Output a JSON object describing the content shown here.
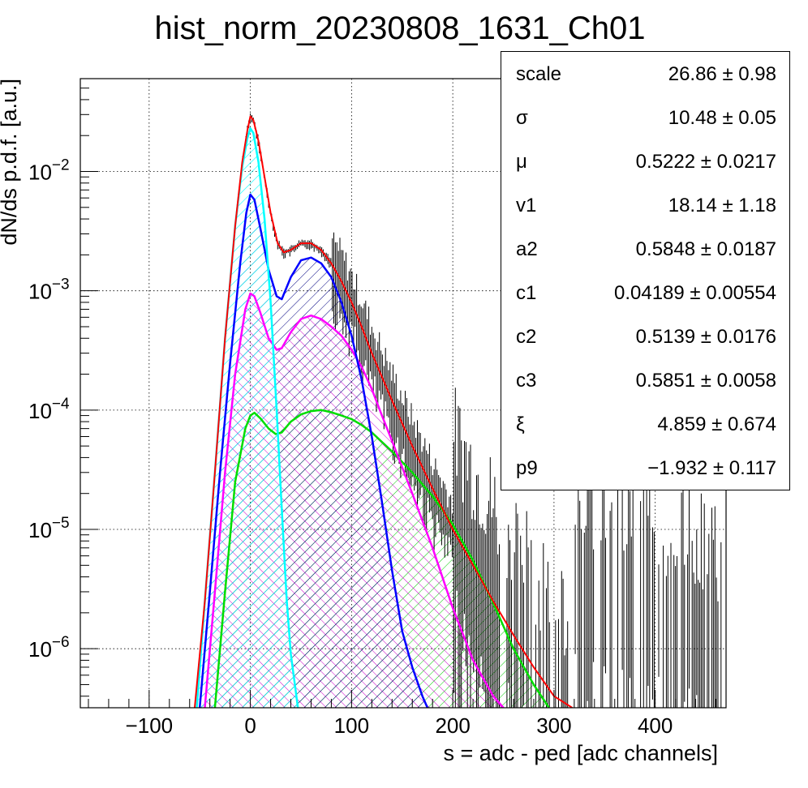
{
  "chart_data": {
    "type": "line",
    "title": "hist_norm_20230808_1631_Ch01",
    "xlabel": "s = adc - ped [adc channels]",
    "ylabel": "dN/ds p.d.f. [a.u.]",
    "xlim": [
      -168,
      470
    ],
    "ylim": [
      3.2e-07,
      0.06
    ],
    "yscale": "log",
    "grid": true,
    "x_ticks": [
      "−100",
      "0",
      "100",
      "200",
      "300",
      "400"
    ],
    "x_tick_values": [
      -100,
      0,
      100,
      200,
      300,
      400
    ],
    "y_ticks": [
      {
        "value": 1e-06,
        "base": "10",
        "exp": "−6"
      },
      {
        "value": 1e-05,
        "base": "10",
        "exp": "−5"
      },
      {
        "value": 0.0001,
        "base": "10",
        "exp": "−4"
      },
      {
        "value": 0.001,
        "base": "10",
        "exp": "−3"
      },
      {
        "value": 0.01,
        "base": "10",
        "exp": "−2"
      }
    ],
    "series": [
      {
        "color": "#ff0000",
        "fill": "none",
        "x": [
          -55,
          -45,
          -35,
          -25,
          -15,
          -8,
          -3,
          0,
          3,
          8,
          14,
          20,
          27,
          33,
          40,
          50,
          60,
          70,
          80,
          90,
          100,
          110,
          120,
          140,
          160,
          180,
          200,
          220,
          240,
          260,
          280,
          300,
          318
        ],
        "y": [
          3.2e-07,
          2.5e-06,
          3e-05,
          0.0004,
          0.0035,
          0.012,
          0.022,
          0.029,
          0.027,
          0.018,
          0.009,
          0.0045,
          0.0025,
          0.0021,
          0.0022,
          0.0025,
          0.0025,
          0.0022,
          0.0017,
          0.0012,
          0.0008,
          0.0005,
          0.0003,
          0.00012,
          5e-05,
          2.2e-05,
          1e-05,
          5e-06,
          2.5e-06,
          1.3e-06,
          7e-07,
          4e-07,
          3.2e-07
        ]
      },
      {
        "color": "#00ffff",
        "fill": "#00ffff",
        "x": [
          -53,
          -45,
          -35,
          -25,
          -15,
          -8,
          -3,
          0,
          3,
          8,
          14,
          20,
          26,
          31,
          36,
          40,
          44,
          47
        ],
        "y": [
          3.2e-07,
          2.5e-06,
          3e-05,
          0.0004,
          0.0035,
          0.011,
          0.019,
          0.023,
          0.021,
          0.012,
          0.004,
          0.0008,
          0.0001,
          1.5e-05,
          2.5e-06,
          9e-07,
          5e-07,
          3.2e-07
        ]
      },
      {
        "color": "#0000ff",
        "fill": "#000080",
        "x": [
          -50,
          -40,
          -30,
          -20,
          -10,
          -4,
          0,
          4,
          10,
          18,
          26,
          31,
          40,
          50,
          60,
          70,
          80,
          90,
          100,
          110,
          120,
          130,
          140,
          150,
          160,
          170,
          175
        ],
        "y": [
          3.2e-07,
          3e-06,
          3e-05,
          0.00025,
          0.0017,
          0.0045,
          0.0064,
          0.0058,
          0.0033,
          0.0015,
          0.0009,
          0.00085,
          0.0013,
          0.0018,
          0.0019,
          0.0017,
          0.0013,
          0.0008,
          0.00042,
          0.00018,
          6e-05,
          1.7e-05,
          4.5e-06,
          1.4e-06,
          7e-07,
          4e-07,
          3.2e-07
        ]
      },
      {
        "color": "#ff00ff",
        "fill": "#cc00cc",
        "x": [
          -45,
          -35,
          -25,
          -15,
          -5,
          0,
          4,
          10,
          18,
          26,
          31,
          40,
          50,
          60,
          70,
          80,
          90,
          100,
          110,
          120,
          130,
          140,
          160,
          180,
          200,
          220,
          240,
          250
        ],
        "y": [
          3.2e-07,
          3e-06,
          3e-05,
          0.0002,
          0.0007,
          0.00095,
          0.0009,
          0.00065,
          0.0004,
          0.00032,
          0.00033,
          0.00045,
          0.00058,
          0.00062,
          0.00058,
          0.0005,
          0.00042,
          0.00032,
          0.00023,
          0.00015,
          9e-05,
          5.5e-05,
          2e-05,
          7e-06,
          2.2e-06,
          8e-07,
          4e-07,
          3.2e-07
        ]
      },
      {
        "color": "#00dd00",
        "fill": "#00cc00",
        "x": [
          -35,
          -25,
          -15,
          -5,
          0,
          4,
          10,
          18,
          25,
          31,
          40,
          50,
          60,
          70,
          80,
          90,
          100,
          110,
          120,
          140,
          160,
          180,
          200,
          220,
          240,
          260,
          280,
          295
        ],
        "y": [
          3.2e-07,
          3e-06,
          2.5e-05,
          7e-05,
          9e-05,
          9.5e-05,
          8.5e-05,
          7e-05,
          6.3e-05,
          6.5e-05,
          8e-05,
          9.2e-05,
          9.8e-05,
          0.0001,
          9.6e-05,
          9e-05,
          8.4e-05,
          7.5e-05,
          6.5e-05,
          4.5e-05,
          3e-05,
          1.9e-05,
          1.1e-05,
          5.5e-06,
          2.4e-06,
          1e-06,
          5e-07,
          3.2e-07
        ]
      }
    ]
  },
  "stats": [
    {
      "name": "scale",
      "value": "26.86 ± 0.98"
    },
    {
      "name": "σ",
      "value": "10.48 ± 0.05"
    },
    {
      "name": "μ",
      "value": "0.5222 ± 0.0217"
    },
    {
      "name": "v1",
      "value": "18.14 ± 1.18"
    },
    {
      "name": "a2",
      "value": "0.5848 ± 0.0187"
    },
    {
      "name": "c1",
      "value": "0.04189 ± 0.00554"
    },
    {
      "name": "c2",
      "value": "0.5139 ± 0.0176"
    },
    {
      "name": "c3",
      "value": "0.5851 ± 0.0058"
    },
    {
      "name": "ξ",
      "value": "4.859 ± 0.674"
    },
    {
      "name": "p9",
      "value": "−1.932 ± 0.117"
    }
  ]
}
